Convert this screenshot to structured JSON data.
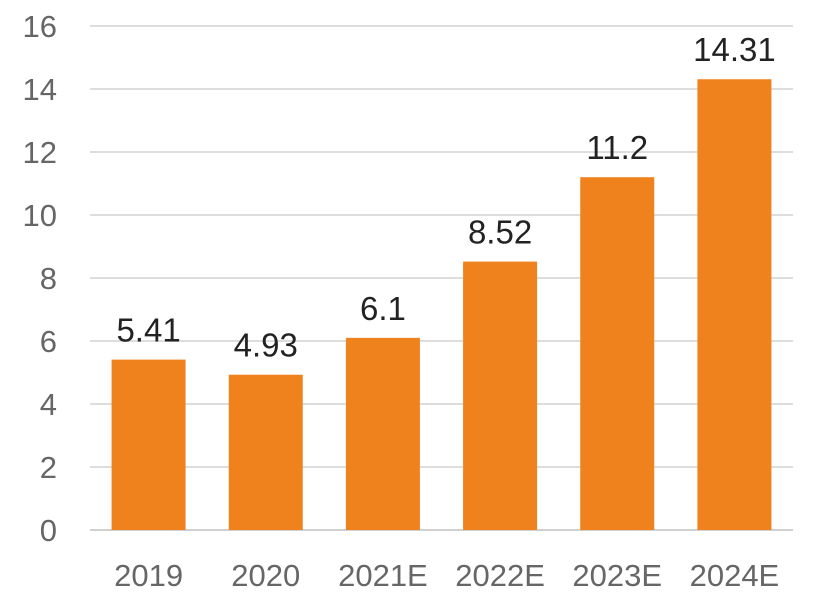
{
  "chart_data": {
    "type": "bar",
    "categories": [
      "2019",
      "2020",
      "2021E",
      "2022E",
      "2023E",
      "2024E"
    ],
    "values": [
      5.41,
      4.93,
      6.1,
      8.52,
      11.2,
      14.31
    ],
    "data_labels": [
      "5.41",
      "4.93",
      "6.1",
      "8.52",
      "11.2",
      "14.31"
    ],
    "ylim": [
      0,
      16
    ],
    "y_ticks": [
      0,
      2,
      4,
      6,
      8,
      10,
      12,
      14,
      16
    ],
    "title": "",
    "xlabel": "",
    "ylabel": "",
    "grid": true,
    "legend": "none",
    "bar_color": "#F0821E",
    "gridline_color": "#dddddd",
    "tick_label_color": "#666666",
    "data_label_color": "#222222"
  }
}
